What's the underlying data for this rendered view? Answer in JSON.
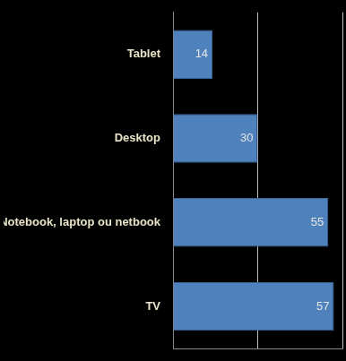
{
  "chart_data": {
    "type": "bar",
    "orientation": "horizontal",
    "categories": [
      "Tablet",
      "Desktop",
      "Notebook, laptop ou netbook",
      "TV"
    ],
    "values": [
      14,
      30,
      55,
      57
    ],
    "color": "#4f81bd",
    "xlim": [
      0,
      60
    ],
    "xticks": [
      0,
      30,
      60
    ],
    "grid": true,
    "tick_labels": "y",
    "data_labels": true
  }
}
